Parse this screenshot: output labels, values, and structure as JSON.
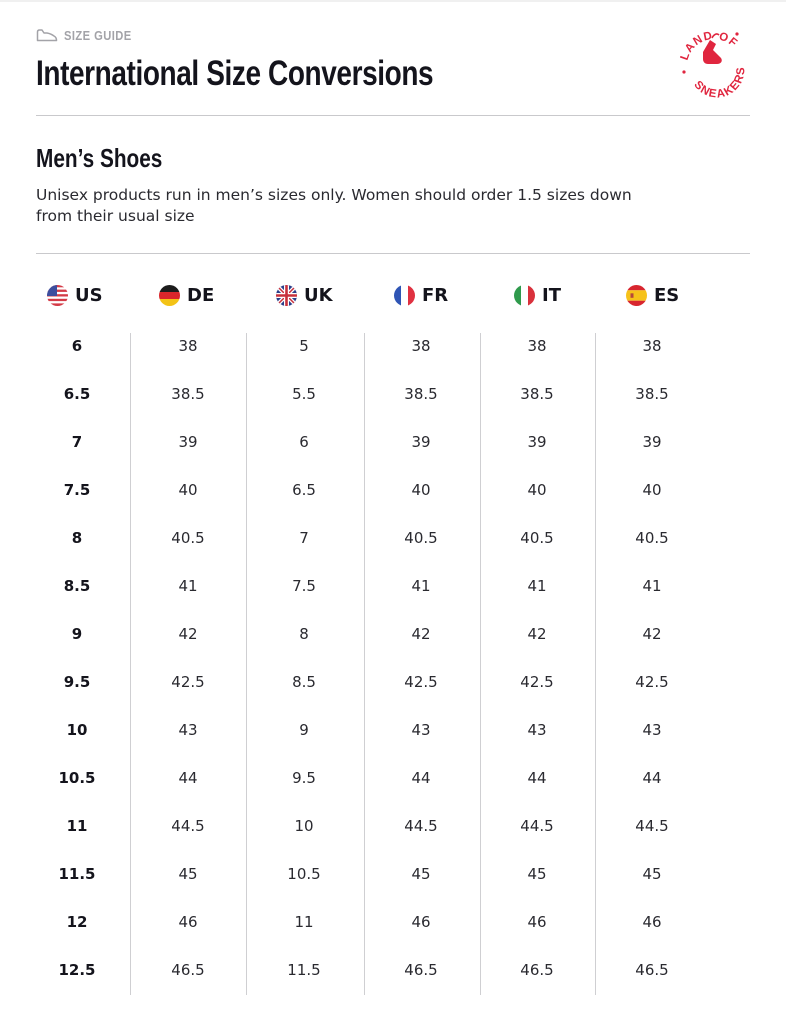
{
  "header": {
    "eyebrow": "SIZE GUIDE",
    "title": "International Size Conversions"
  },
  "logo": {
    "top_text": "LAND OF",
    "bottom_text": "SNEAKERS",
    "color": "#e0263f"
  },
  "section": {
    "title": "Men’s Shoes",
    "note": "Unisex products run in men’s sizes only. Women should order 1.5 sizes down from their usual size"
  },
  "table": {
    "columns": [
      {
        "code": "US",
        "flag": "us-flag-icon"
      },
      {
        "code": "DE",
        "flag": "de-flag-icon"
      },
      {
        "code": "UK",
        "flag": "uk-flag-icon"
      },
      {
        "code": "FR",
        "flag": "fr-flag-icon"
      },
      {
        "code": "IT",
        "flag": "it-flag-icon"
      },
      {
        "code": "ES",
        "flag": "es-flag-icon"
      }
    ],
    "rows": [
      [
        "6",
        "38",
        "5",
        "38",
        "38",
        "38"
      ],
      [
        "6.5",
        "38.5",
        "5.5",
        "38.5",
        "38.5",
        "38.5"
      ],
      [
        "7",
        "39",
        "6",
        "39",
        "39",
        "39"
      ],
      [
        "7.5",
        "40",
        "6.5",
        "40",
        "40",
        "40"
      ],
      [
        "8",
        "40.5",
        "7",
        "40.5",
        "40.5",
        "40.5"
      ],
      [
        "8.5",
        "41",
        "7.5",
        "41",
        "41",
        "41"
      ],
      [
        "9",
        "42",
        "8",
        "42",
        "42",
        "42"
      ],
      [
        "9.5",
        "42.5",
        "8.5",
        "42.5",
        "42.5",
        "42.5"
      ],
      [
        "10",
        "43",
        "9",
        "43",
        "43",
        "43"
      ],
      [
        "10.5",
        "44",
        "9.5",
        "44",
        "44",
        "44"
      ],
      [
        "11",
        "44.5",
        "10",
        "44.5",
        "44.5",
        "44.5"
      ],
      [
        "11.5",
        "45",
        "10.5",
        "45",
        "45",
        "45"
      ],
      [
        "12",
        "46",
        "11",
        "46",
        "46",
        "46"
      ],
      [
        "12.5",
        "46.5",
        "11.5",
        "46.5",
        "46.5",
        "46.5"
      ]
    ]
  }
}
